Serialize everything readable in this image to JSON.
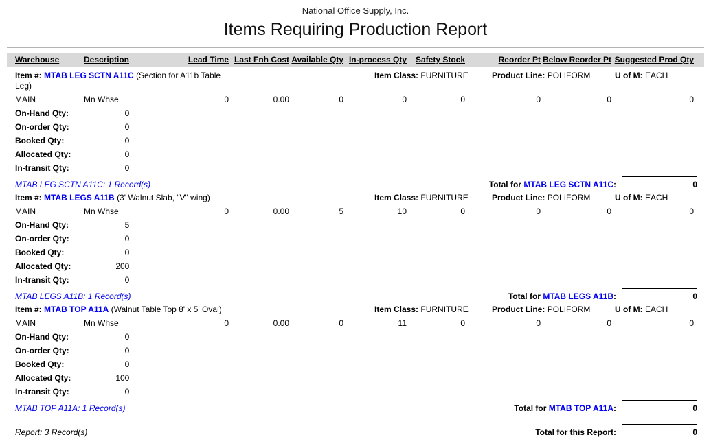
{
  "report": {
    "company": "National Office Supply, Inc.",
    "title": "Items Requiring Production Report",
    "columns": [
      "Warehouse",
      "Description",
      "Lead Time",
      "Last Fnh Cost",
      "Available Qty",
      "In-process Qty",
      "Safety Stock",
      "Reorder Pt",
      "Below Reorder Pt",
      "Suggested Prod Qty"
    ],
    "labels": {
      "item": "Item #:",
      "item_class": "Item Class:",
      "product_line": "Product Line:",
      "uom": "U of M:",
      "total_for": "Total for",
      "colon": ":",
      "details": [
        "On-Hand Qty:",
        "On-order Qty:",
        "Booked Qty:",
        "Allocated Qty:",
        "In-transit Qty:"
      ]
    },
    "colors": {
      "link_blue": "#0000f0",
      "header_band": "#d9d9d9"
    },
    "items": [
      {
        "code": "MTAB LEG SCTN A11C",
        "description": "(Section for A11b Table\nLeg)",
        "item_class": "FURNITURE",
        "product_line": "POLIFORM",
        "uom": "EACH",
        "warehouse": "MAIN",
        "warehouse_desc": "Mn Whse",
        "lead_time": "0",
        "last_fnh_cost": "0.00",
        "available_qty": "0",
        "in_process_qty": "0",
        "safety_stock": "0",
        "reorder_pt": "0",
        "below_reorder_pt": "0",
        "suggested_prod_qty": "0",
        "on_hand_qty": "0",
        "on_order_qty": "0",
        "booked_qty": "0",
        "allocated_qty": "0",
        "in_transit_qty": "0",
        "record_line": "MTAB LEG SCTN A11C: 1 Record(s)",
        "total_value": "0"
      },
      {
        "code": "MTAB LEGS A11B",
        "description": "(3' Walnut Slab, \"V\" wing)",
        "item_class": "FURNITURE",
        "product_line": "POLIFORM",
        "uom": "EACH",
        "warehouse": "MAIN",
        "warehouse_desc": "Mn Whse",
        "lead_time": "0",
        "last_fnh_cost": "0.00",
        "available_qty": "5",
        "in_process_qty": "10",
        "safety_stock": "0",
        "reorder_pt": "0",
        "below_reorder_pt": "0",
        "suggested_prod_qty": "0",
        "on_hand_qty": "5",
        "on_order_qty": "0",
        "booked_qty": "0",
        "allocated_qty": "200",
        "in_transit_qty": "0",
        "record_line": "MTAB LEGS A11B: 1 Record(s)",
        "total_value": "0"
      },
      {
        "code": "MTAB TOP A11A",
        "description": "(Walnut Table Top 8' x 5' Oval)",
        "item_class": "FURNITURE",
        "product_line": "POLIFORM",
        "uom": "EACH",
        "warehouse": "MAIN",
        "warehouse_desc": "Mn Whse",
        "lead_time": "0",
        "last_fnh_cost": "0.00",
        "available_qty": "0",
        "in_process_qty": "11",
        "safety_stock": "0",
        "reorder_pt": "0",
        "below_reorder_pt": "0",
        "suggested_prod_qty": "0",
        "on_hand_qty": "0",
        "on_order_qty": "0",
        "booked_qty": "0",
        "allocated_qty": "100",
        "in_transit_qty": "0",
        "record_line": "MTAB TOP A11A: 1 Record(s)",
        "total_value": "0"
      }
    ],
    "footer": {
      "record_line": "Report: 3 Record(s)",
      "total_label": "Total for this Report:",
      "total_value": "0"
    }
  }
}
